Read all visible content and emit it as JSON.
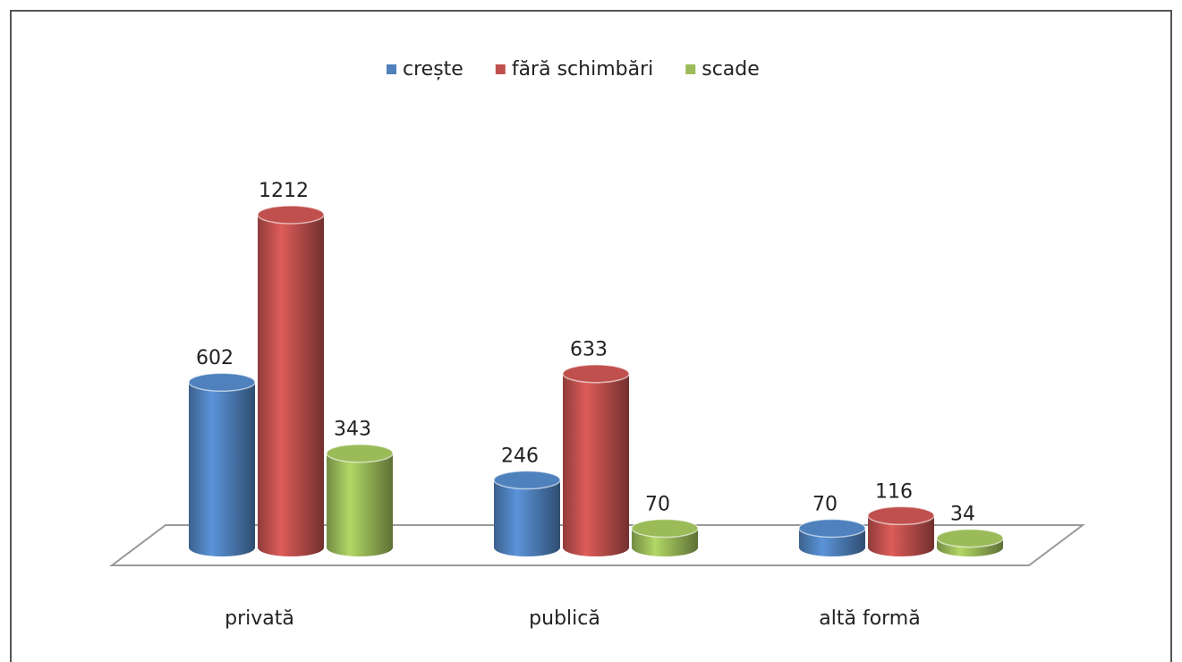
{
  "chart_data": {
    "type": "bar3d",
    "categories": [
      "privată",
      "publică",
      "altă formă"
    ],
    "series": [
      {
        "name": "crește",
        "color": "#4f81bd",
        "values": [
          602,
          246,
          70
        ]
      },
      {
        "name": "fără schimbări",
        "color": "#c0504d",
        "values": [
          1212,
          633,
          116
        ]
      },
      {
        "name": "scade",
        "color": "#9bbb59",
        "values": [
          343,
          70,
          34
        ]
      }
    ],
    "legend": "top"
  }
}
